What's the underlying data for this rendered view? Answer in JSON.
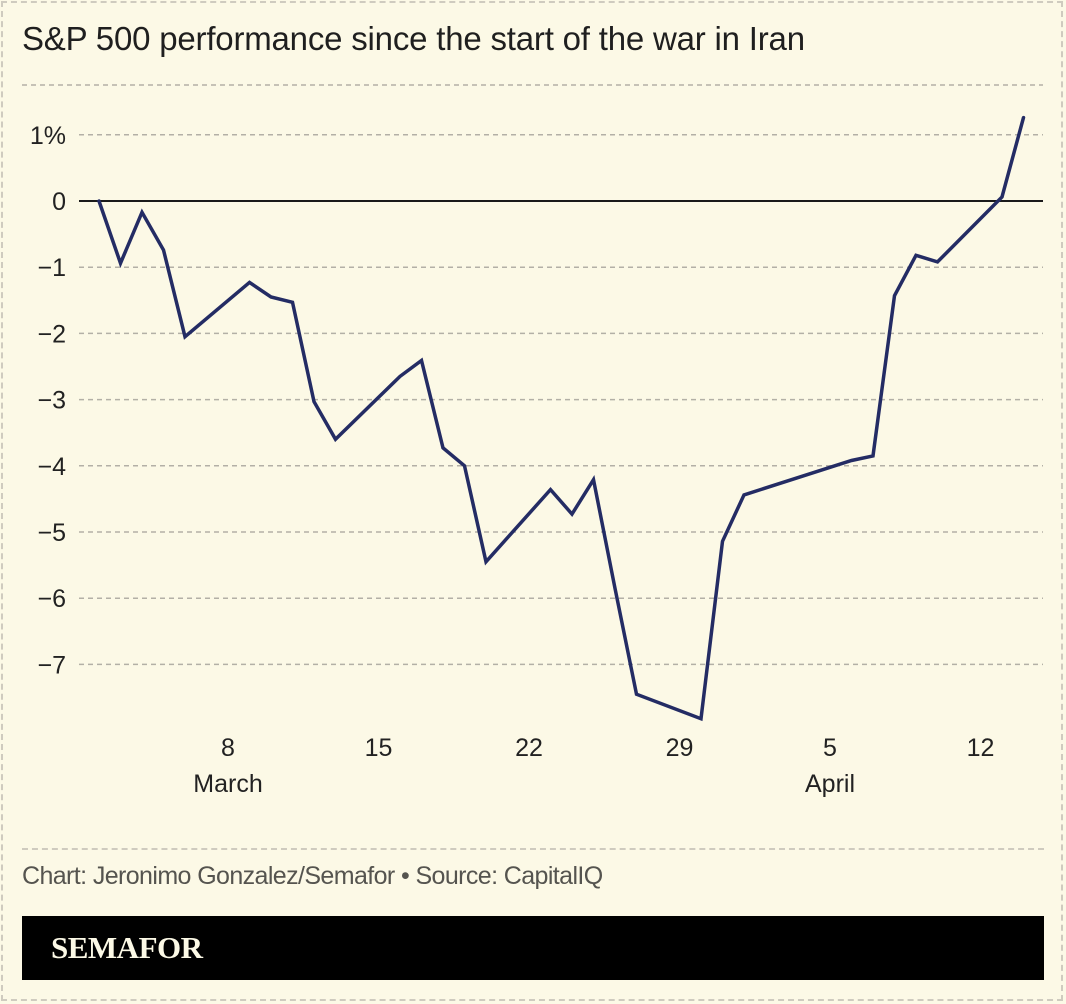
{
  "header": {
    "title": "S&P 500 performance since the start of the war in Iran"
  },
  "footer": {
    "credit": "Chart: Jeronimo Gonzalez/Semafor • Source: CapitalIQ",
    "logo": "SEMAFOR"
  },
  "colors": {
    "background": "#fcf9e6",
    "line": "#242c64",
    "zero_line": "#1a1a1a",
    "grid": "#b3b0a6",
    "logo_bar": "#000000",
    "logo_text": "#fcf9e6"
  },
  "chart_data": {
    "type": "line",
    "title": "S&P 500 performance since the start of the war in Iran",
    "xlabel": "",
    "ylabel": "",
    "unit": "%",
    "grid": true,
    "legend": "none",
    "ylim": [
      -8,
      1.75
    ],
    "y_ticks": [
      {
        "value": 1,
        "label": "1%"
      },
      {
        "value": 0,
        "label": "0"
      },
      {
        "value": -1,
        "label": "−1"
      },
      {
        "value": -2,
        "label": "−2"
      },
      {
        "value": -3,
        "label": "−3"
      },
      {
        "value": -4,
        "label": "−4"
      },
      {
        "value": -5,
        "label": "−5"
      },
      {
        "value": -6,
        "label": "−6"
      },
      {
        "value": -7,
        "label": "−7"
      }
    ],
    "x_ticks": [
      {
        "day": 6,
        "label": "8",
        "month_label": "March"
      },
      {
        "day": 13,
        "label": "15",
        "month_label": ""
      },
      {
        "day": 20,
        "label": "22",
        "month_label": ""
      },
      {
        "day": 27,
        "label": "29",
        "month_label": ""
      },
      {
        "day": 34,
        "label": "5",
        "month_label": "April"
      },
      {
        "day": 41,
        "label": "12",
        "month_label": ""
      }
    ],
    "xlim_days": [
      -1.2,
      44.3
    ],
    "x_note": "day = days since March 2",
    "series": [
      {
        "name": "S&P 500",
        "points": [
          {
            "date": "Mar 2",
            "day": 0,
            "value": 0.0
          },
          {
            "date": "Mar 3",
            "day": 1,
            "value": -0.94
          },
          {
            "date": "Mar 4",
            "day": 2,
            "value": -0.17
          },
          {
            "date": "Mar 5",
            "day": 3,
            "value": -0.74
          },
          {
            "date": "Mar 6",
            "day": 4,
            "value": -2.05
          },
          {
            "date": "Mar 9",
            "day": 7,
            "value": -1.23
          },
          {
            "date": "Mar 10",
            "day": 8,
            "value": -1.45
          },
          {
            "date": "Mar 11",
            "day": 9,
            "value": -1.53
          },
          {
            "date": "Mar 12",
            "day": 10,
            "value": -3.03
          },
          {
            "date": "Mar 13",
            "day": 11,
            "value": -3.6
          },
          {
            "date": "Mar 16",
            "day": 14,
            "value": -2.65
          },
          {
            "date": "Mar 17",
            "day": 15,
            "value": -2.41
          },
          {
            "date": "Mar 18",
            "day": 16,
            "value": -3.73
          },
          {
            "date": "Mar 19",
            "day": 17,
            "value": -4.0
          },
          {
            "date": "Mar 20",
            "day": 18,
            "value": -5.45
          },
          {
            "date": "Mar 23",
            "day": 21,
            "value": -4.36
          },
          {
            "date": "Mar 24",
            "day": 22,
            "value": -4.73
          },
          {
            "date": "Mar 25",
            "day": 23,
            "value": -4.21
          },
          {
            "date": "Mar 26",
            "day": 24,
            "value": -5.85
          },
          {
            "date": "Mar 27",
            "day": 25,
            "value": -7.45
          },
          {
            "date": "Mar 30",
            "day": 28,
            "value": -7.82
          },
          {
            "date": "Mar 31",
            "day": 29,
            "value": -5.14
          },
          {
            "date": "Apr 1",
            "day": 30,
            "value": -4.44
          },
          {
            "date": "Apr 6",
            "day": 35,
            "value": -3.92
          },
          {
            "date": "Apr 7",
            "day": 36,
            "value": -3.85
          },
          {
            "date": "Apr 8",
            "day": 37,
            "value": -1.43
          },
          {
            "date": "Apr 9",
            "day": 38,
            "value": -0.82
          },
          {
            "date": "Apr 10",
            "day": 39,
            "value": -0.92
          },
          {
            "date": "Apr 13",
            "day": 42,
            "value": 0.06
          },
          {
            "date": "Apr 14",
            "day": 43,
            "value": 1.26
          }
        ]
      }
    ]
  }
}
